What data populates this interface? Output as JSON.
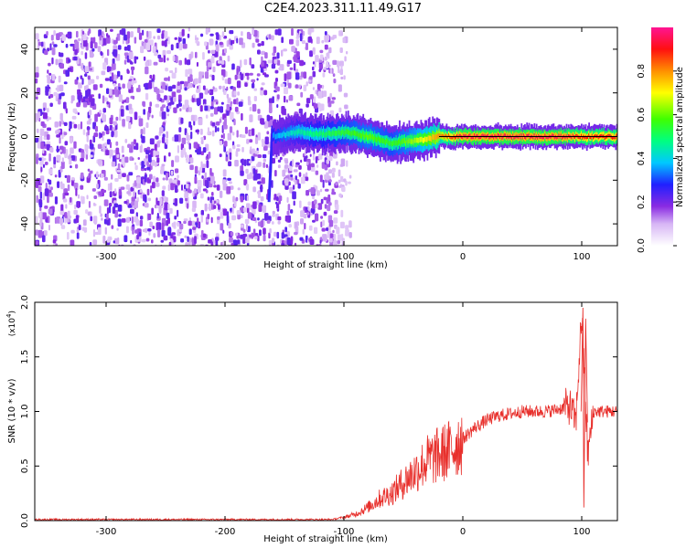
{
  "title": "C2E4.2023.311.11.49.G17",
  "chart_data": [
    {
      "type": "heatmap",
      "xlabel": "Height of straight line (km)",
      "ylabel": "Frequency (Hz)",
      "xlim": [
        -360,
        130
      ],
      "ylim": [
        -50,
        50
      ],
      "x_ticks": [
        -300,
        -200,
        -100,
        0,
        100
      ],
      "y_ticks": [
        -40,
        -20,
        0,
        20,
        40
      ],
      "colorbar": {
        "label": "Normalized spectral amplitude",
        "range": [
          0.0,
          1.0
        ],
        "ticks": [
          0.0,
          0.2,
          0.4,
          0.6,
          0.8
        ],
        "colors": [
          "#ffffff",
          "#8a2be2",
          "#0000ff",
          "#00ffff",
          "#00ff00",
          "#ffff00",
          "#ff8000",
          "#ff0000",
          "#ff1493"
        ]
      },
      "ridge": {
        "x": [
          -160,
          -140,
          -120,
          -100,
          -80,
          -60,
          -40,
          -20,
          0,
          40,
          80,
          100,
          130
        ],
        "y": [
          0,
          2,
          1,
          2,
          0,
          -3,
          -2,
          0,
          0,
          0,
          0,
          0,
          0
        ],
        "peak_amplitude": [
          0.35,
          0.45,
          0.5,
          0.55,
          0.6,
          0.55,
          0.65,
          0.8,
          0.95,
          0.95,
          0.95,
          0.9,
          0.9
        ]
      },
      "noise_region": {
        "x_start": -360,
        "x_end": -100,
        "amplitude": 0.3
      },
      "grid": false
    },
    {
      "type": "line",
      "xlabel": "Height of straight line (km)",
      "ylabel": "SNR (10 * v/v)",
      "yscale_label": "(x10",
      "yscale_exp": "4",
      "yscale_close": ")",
      "xlim": [
        -360,
        130
      ],
      "ylim": [
        0.0,
        2.0
      ],
      "x_ticks": [
        -300,
        -200,
        -100,
        0,
        100
      ],
      "y_ticks": [
        "0.0",
        "0.5",
        "1.0",
        "1.5",
        "2.0"
      ],
      "series": [
        {
          "color": "#e8302c",
          "x": [
            -360,
            -300,
            -200,
            -110,
            -100,
            -90,
            -80,
            -70,
            -60,
            -50,
            -40,
            -30,
            -20,
            -10,
            0,
            10,
            20,
            30,
            40,
            50,
            60,
            70,
            80,
            90,
            95,
            100,
            105,
            110,
            120,
            130
          ],
          "y": [
            0.01,
            0.01,
            0.01,
            0.01,
            0.03,
            0.06,
            0.12,
            0.2,
            0.25,
            0.35,
            0.45,
            0.55,
            0.6,
            0.65,
            0.75,
            0.85,
            0.92,
            0.96,
            0.98,
            1.0,
            1.0,
            1.0,
            1.02,
            1.05,
            0.9,
            1.9,
            0.6,
            1.0,
            1.0,
            1.0
          ]
        }
      ],
      "grid": false
    }
  ]
}
